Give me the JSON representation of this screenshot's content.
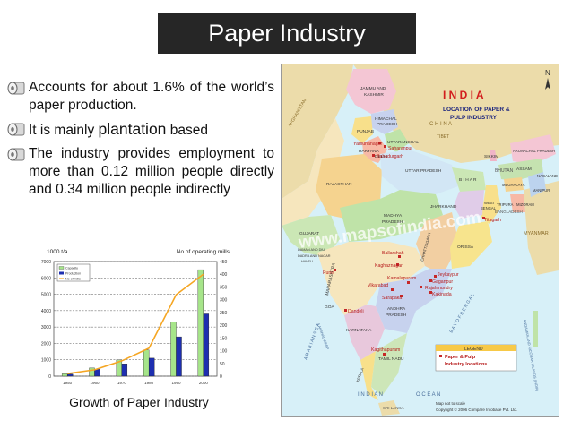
{
  "slide": {
    "title": "Paper Industry",
    "bullets": [
      {
        "text": "Accounts for about 1.6% of the world’s paper production."
      },
      {
        "before": "It is mainly ",
        "emph": "plantation",
        "after": " based"
      },
      {
        "text": "The industry provides employment to more than 0.12 million people directly and 0.34 million people indirectly"
      }
    ],
    "caption": "Growth of Paper Industry"
  },
  "chart_data": {
    "type": "bar",
    "title": "",
    "ylabel": "1000 t/a",
    "y2label": "No of operating mills",
    "categories": [
      "1950",
      "1960",
      "1970",
      "1980",
      "1990",
      "2000"
    ],
    "ylim": [
      0,
      7000
    ],
    "yticks": [
      "0",
      "1000",
      "2000",
      "3000",
      "4000",
      "5000",
      "6000",
      "7000"
    ],
    "y2lim": [
      0,
      450
    ],
    "y2ticks": [
      "0",
      "50",
      "100",
      "150",
      "200",
      "250",
      "300",
      "350",
      "400",
      "450"
    ],
    "series": [
      {
        "name": "Capacity",
        "values": [
          140,
          500,
          1000,
          1600,
          3300,
          6500
        ]
      },
      {
        "name": "Production",
        "values": [
          120,
          420,
          750,
          1100,
          2400,
          3800
        ]
      },
      {
        "name": "No of mills",
        "axis": "y2",
        "values": [
          10,
          25,
          60,
          110,
          320,
          400
        ]
      }
    ],
    "legend": "top-left",
    "grid": true,
    "colors": {
      "capacity": "#a6e58a",
      "production": "#1e2fb0",
      "mills": "#f5a623"
    }
  },
  "map": {
    "title": "I N D I A",
    "subtitle1": "LOCATION OF PAPER &",
    "subtitle2": "PULP INDUSTRY",
    "north": "N",
    "watermark": "www.mapsofindia.com",
    "legend_title": "LEGEND",
    "legend_item1": "Paper & Pulp",
    "legend_item2": "Industry locations",
    "note1": "Map not to scale",
    "note2": "Copyright © 2006 Compare Infobase Pvt. Ltd.",
    "sea_indian": "I N D I A N",
    "sea_ocean": "O C E A N",
    "sea_arabian": "A R A B I A N   S E A",
    "sea_bay": "B A Y   O F   B E N G A L",
    "countries": {
      "afghanistan": "AFGHANISTAN",
      "china": "C H I N A",
      "tibet": "TIBET",
      "bhutan": "BHUTAN",
      "bangladesh": "BANGLADESH",
      "myanmar": "MYANMAR",
      "srilanka": "SRI LANKA",
      "laksha": "LAKSHADWEEP",
      "andaman": "ANDAMAN AND NICOBAR ISLANDS (INDIA)"
    },
    "states": {
      "jk1": "JAMMU AND",
      "jk2": "KASHMIR",
      "hp1": "HIMACHAL",
      "hp2": "PRADESH",
      "punjab": "PUNJAB",
      "uttaranchal": "UTTARANCHAL",
      "haryana": "HARYANA",
      "delhi": "DELHI",
      "rajasthan": "RAJASTHAN",
      "up": "UTTAR PRADESH",
      "bihar": "B I H A R",
      "sikkim": "SIKKIM",
      "arunachal": "ARUNACHAL PRADESH",
      "assam": "ASSAM",
      "nagaland": "NAGALAND",
      "meghalaya": "MEGHALAYA",
      "manipur": "MANIPUR",
      "tripura": "TRIPURA",
      "mizoram": "MIZORAM",
      "wb1": "WEST",
      "wb2": "BENGAL",
      "jharkhand": "JHARKHAND",
      "gujarat": "GUJARAT",
      "mp1": "MADHYA",
      "mp2": "PRADESH",
      "chhattisgarh": "CHHATTISGARH",
      "orissa": "ORISSA",
      "maharashtra": "MAHARASHTRA",
      "ap1": "ANDHRA",
      "ap2": "PRADESH",
      "goa": "GOA",
      "karnataka": "KARNATAKA",
      "tamilnadu": "TAMIL NADU",
      "kerala": "KERALA",
      "daman1": "DAMAN AND DIU",
      "dnh1": "DADRA AND NAGAR",
      "dnh2": "HAVELI"
    },
    "cities": {
      "yamunanagar": "Yamunanagar",
      "saharanpur": "Saharanpur",
      "bahadurgarh": "Bahadurgarh",
      "titagarh": "Titagarh",
      "ballarshah": "Ballarshah",
      "kaghaznagar": "Kaghaznagar",
      "jeykaypur": "Jeykaypur",
      "pune": "Pune",
      "kamalapuram": "Kamalapuram",
      "gaganpur": "Gaganpur",
      "vikarabad": "Vikarabad",
      "rajahmundry": "Rajahmundry",
      "sarapaka": "Sarapaka",
      "kakinada": "Kakinada",
      "dandeli": "Dandeli",
      "kagithapuram": "Kagithapuram"
    }
  }
}
